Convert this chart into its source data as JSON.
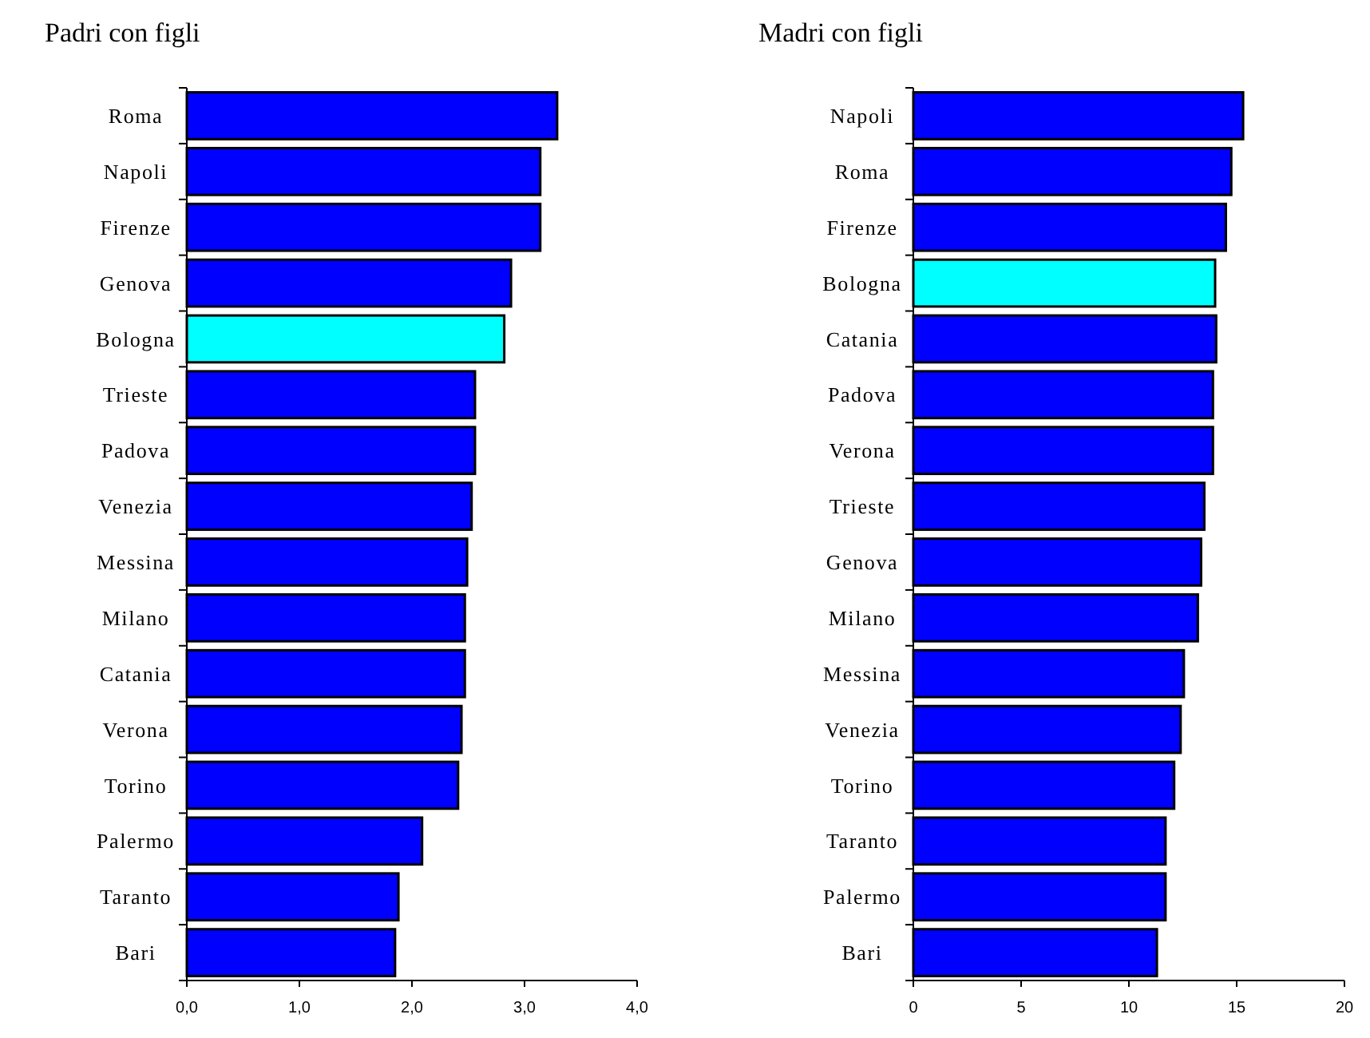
{
  "chart_data": [
    {
      "type": "bar",
      "orientation": "horizontal",
      "title": "Padri con figli",
      "categories": [
        "Roma",
        "Napoli",
        "Firenze",
        "Genova",
        "Bologna",
        "Trieste",
        "Padova",
        "Venezia",
        "Messina",
        "Milano",
        "Catania",
        "Verona",
        "Torino",
        "Palermo",
        "Taranto",
        "Bari"
      ],
      "values": [
        3.29,
        3.14,
        3.14,
        2.88,
        2.82,
        2.56,
        2.56,
        2.53,
        2.49,
        2.47,
        2.47,
        2.44,
        2.41,
        2.09,
        1.88,
        1.85
      ],
      "colors": [
        "#0000ff",
        "#0000ff",
        "#0000ff",
        "#0000ff",
        "#00ffff",
        "#0000ff",
        "#0000ff",
        "#0000ff",
        "#0000ff",
        "#0000ff",
        "#0000ff",
        "#0000ff",
        "#0000ff",
        "#0000ff",
        "#0000ff",
        "#0000ff"
      ],
      "xlim": [
        0,
        4
      ],
      "xticks": [
        {
          "value": 0,
          "label": "0,0"
        },
        {
          "value": 1,
          "label": "1,0"
        },
        {
          "value": 2,
          "label": "2,0"
        },
        {
          "value": 3,
          "label": "3,0"
        },
        {
          "value": 4,
          "label": "4,0"
        }
      ],
      "grid": false
    },
    {
      "type": "bar",
      "orientation": "horizontal",
      "title": "Madri con figli",
      "categories": [
        "Napoli",
        "Roma",
        "Firenze",
        "Bologna",
        "Catania",
        "Padova",
        "Verona",
        "Trieste",
        "Genova",
        "Milano",
        "Messina",
        "Venezia",
        "Torino",
        "Taranto",
        "Palermo",
        "Bari"
      ],
      "values": [
        15.3,
        14.75,
        14.5,
        14.0,
        14.05,
        13.9,
        13.9,
        13.5,
        13.35,
        13.2,
        12.55,
        12.4,
        12.1,
        11.7,
        11.7,
        11.3
      ],
      "colors": [
        "#0000ff",
        "#0000ff",
        "#0000ff",
        "#00ffff",
        "#0000ff",
        "#0000ff",
        "#0000ff",
        "#0000ff",
        "#0000ff",
        "#0000ff",
        "#0000ff",
        "#0000ff",
        "#0000ff",
        "#0000ff",
        "#0000ff",
        "#0000ff"
      ],
      "xlim": [
        0,
        20
      ],
      "xticks": [
        0,
        5,
        10,
        15,
        20
      ],
      "grid": false
    }
  ]
}
